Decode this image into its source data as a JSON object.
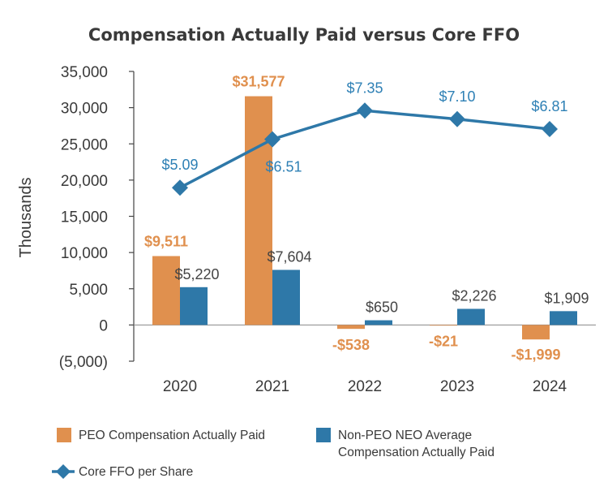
{
  "chart_data": {
    "type": "bar",
    "title": "Compensation Actually Paid versus Core FFO",
    "ylabel": "Thousands",
    "xlabel": "",
    "ylim": [
      -5000,
      35000
    ],
    "yticks": [
      35000,
      30000,
      25000,
      20000,
      15000,
      10000,
      5000,
      0,
      -5000
    ],
    "ytick_labels": [
      "35,000",
      "30,000",
      "25,000",
      "20,000",
      "15,000",
      "10,000",
      "5,000",
      "0",
      "(5,000)"
    ],
    "categories": [
      "2020",
      "2021",
      "2022",
      "2023",
      "2024"
    ],
    "series": [
      {
        "name": "PEO Compensation Actually Paid",
        "kind": "bar",
        "color": "#E0904E",
        "values": [
          9511,
          31577,
          -538,
          -21,
          -1999
        ],
        "labels": [
          "$9,511",
          "$31,577",
          "-$538",
          "-$21",
          "-$1,999"
        ]
      },
      {
        "name": "Non-PEO NEO Average Compensation Actually Paid",
        "legend_lines": [
          "Non-PEO NEO Average",
          "Compensation Actually Paid"
        ],
        "kind": "bar",
        "color": "#2E78A8",
        "values": [
          5220,
          7604,
          650,
          2226,
          1909
        ],
        "labels": [
          "$5,220",
          "$7,604",
          "$650",
          "$2,226",
          "$1,909"
        ]
      },
      {
        "name": "Core FFO per Share",
        "kind": "line",
        "color": "#2E78A8",
        "label_color": "#2E80B5",
        "marker": "diamond",
        "values": [
          5.09,
          6.51,
          7.35,
          7.1,
          6.81
        ],
        "labels": [
          "$5.09",
          "$6.51",
          "$7.35",
          "$7.10",
          "$6.81"
        ],
        "secondary_axis": true,
        "secondary_ylim": [
          0,
          8.5
        ]
      }
    ],
    "legend_position": "bottom"
  }
}
